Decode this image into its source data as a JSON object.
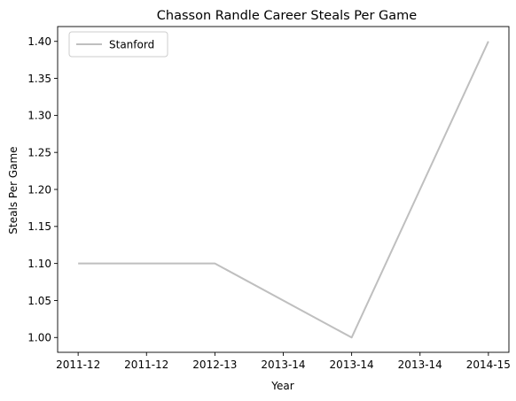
{
  "chart_data": {
    "type": "line",
    "title": "Chasson Randle Career Steals Per Game",
    "xlabel": "Year",
    "ylabel": "Steals Per Game",
    "x_ticks": [
      "2011-12",
      "2011-12",
      "2012-13",
      "2013-14",
      "2013-14",
      "2013-14",
      "2014-15"
    ],
    "x": [
      "2011-12",
      "2012-13",
      "2013-14",
      "2014-15"
    ],
    "series": [
      {
        "name": "Stanford",
        "color": "#bfbfbf",
        "x": [
          0,
          1,
          2,
          3
        ],
        "values": [
          1.1,
          1.1,
          1.0,
          1.4
        ]
      }
    ],
    "y_ticks": [
      "1.00",
      "1.05",
      "1.10",
      "1.15",
      "1.20",
      "1.25",
      "1.30",
      "1.35",
      "1.40"
    ],
    "ylim": [
      0.98,
      1.42
    ],
    "xlim": [
      -0.15,
      3.15
    ],
    "grid": false,
    "legend_position": "upper-left"
  }
}
